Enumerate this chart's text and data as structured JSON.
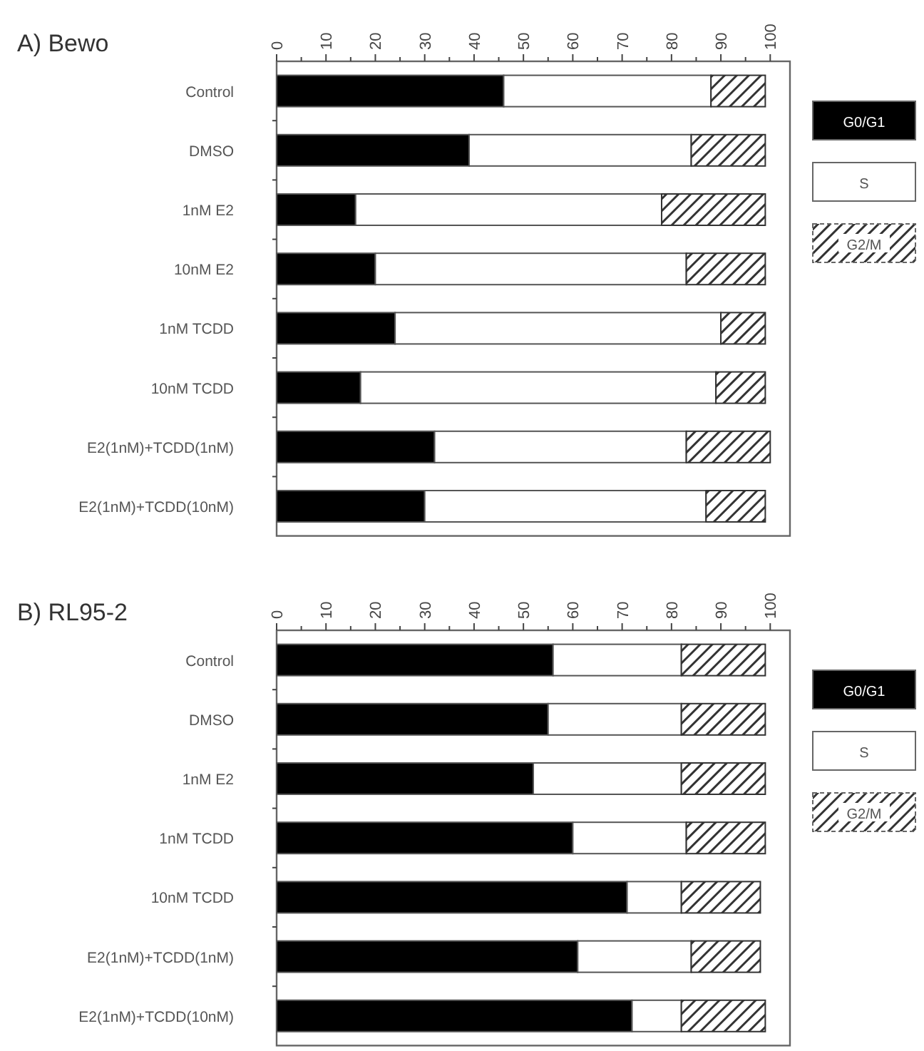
{
  "chart_data": [
    {
      "type": "bar",
      "orientation": "horizontal",
      "stacked": true,
      "title": "A) Bewo",
      "categories": [
        "Control",
        "DMSO",
        "1nM E2",
        "10nM E2",
        "1nM TCDD",
        "10nM TCDD",
        "E2(1nM)+TCDD(1nM)",
        "E2(1nM)+TCDD(10nM)"
      ],
      "series": [
        {
          "name": "G0/G1",
          "color": "#000000",
          "values": [
            46,
            39,
            16,
            20,
            24,
            17,
            32,
            30
          ]
        },
        {
          "name": "S",
          "color": "#ffffff",
          "values": [
            42,
            45,
            62,
            63,
            66,
            72,
            51,
            57
          ]
        },
        {
          "name": "G2/M",
          "color": "#333333",
          "values": [
            11,
            15,
            21,
            16,
            9,
            10,
            17,
            12
          ]
        }
      ],
      "xlim": [
        0,
        104
      ],
      "xticks": [
        0,
        {
          "value": 5,
          "label": null
        },
        10,
        {
          "value": 15,
          "label": null
        },
        20,
        {
          "value": 25,
          "label": null
        },
        30,
        {
          "value": 35,
          "label": null
        },
        40,
        {
          "value": 45,
          "label": null
        },
        50,
        {
          "value": 55,
          "label": null
        },
        60,
        {
          "value": 65,
          "label": null
        },
        70,
        {
          "value": 75,
          "label": null
        },
        80,
        {
          "value": 85,
          "label": null
        },
        90,
        {
          "value": 95,
          "label": null
        },
        100
      ],
      "legend": "right",
      "grid": false
    },
    {
      "type": "bar",
      "orientation": "horizontal",
      "stacked": true,
      "title": "B) RL95-2",
      "categories": [
        "Control",
        "DMSO",
        "1nM E2",
        "1nM TCDD",
        "10nM TCDD",
        "E2(1nM)+TCDD(1nM)",
        "E2(1nM)+TCDD(10nM)"
      ],
      "series": [
        {
          "name": "G0/G1",
          "color": "#000000",
          "values": [
            56,
            55,
            52,
            60,
            71,
            61,
            72
          ]
        },
        {
          "name": "S",
          "color": "#ffffff",
          "values": [
            26,
            27,
            30,
            23,
            11,
            23,
            10
          ]
        },
        {
          "name": "G2/M",
          "color": "#333333",
          "values": [
            17,
            17,
            17,
            16,
            16,
            14,
            17
          ]
        }
      ],
      "xlim": [
        0,
        104
      ],
      "xticks": [
        0,
        {
          "value": 5,
          "label": null
        },
        10,
        {
          "value": 15,
          "label": null
        },
        20,
        {
          "value": 25,
          "label": null
        },
        30,
        {
          "value": 35,
          "label": null
        },
        40,
        {
          "value": 45,
          "label": null
        },
        50,
        {
          "value": 55,
          "label": null
        },
        60,
        {
          "value": 65,
          "label": null
        },
        70,
        {
          "value": 75,
          "label": null
        },
        80,
        {
          "value": 85,
          "label": null
        },
        90,
        {
          "value": 95,
          "label": null
        },
        100
      ],
      "legend": "right",
      "grid": false
    }
  ]
}
